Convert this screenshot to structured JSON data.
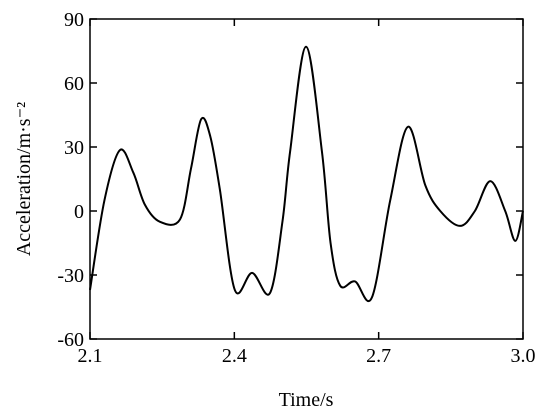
{
  "chart_data": {
    "type": "line",
    "xlabel": "Time/s",
    "ylabel": "Acceleration/m·s⁻²",
    "x": [
      2.1,
      2.13,
      2.162,
      2.19,
      2.214,
      2.245,
      2.287,
      2.31,
      2.331,
      2.35,
      2.37,
      2.401,
      2.437,
      2.474,
      2.5,
      2.516,
      2.549,
      2.582,
      2.6,
      2.62,
      2.651,
      2.686,
      2.724,
      2.761,
      2.797,
      2.828,
      2.869,
      2.9,
      2.932,
      2.963,
      2.984,
      3.0
    ],
    "series": [
      {
        "name": "Acceleration",
        "color": "#000000",
        "values": [
          -37,
          5,
          28.5,
          18,
          3,
          -5,
          -4,
          20,
          43,
          35,
          10,
          -37,
          -29,
          -38.5,
          -5,
          28,
          77,
          28,
          -15,
          -35,
          -33,
          -40.5,
          5,
          39.5,
          12,
          0,
          -7,
          0,
          14,
          0,
          -14,
          0
        ]
      }
    ],
    "xlim": [
      2.1,
      3.0
    ],
    "xticks": [
      2.1,
      2.4,
      2.7,
      {
        "value": 3,
        "label": "3.0"
      }
    ],
    "ylim": [
      -60,
      90
    ],
    "yticks": [
      -60,
      -30,
      0,
      30,
      60,
      90
    ]
  }
}
